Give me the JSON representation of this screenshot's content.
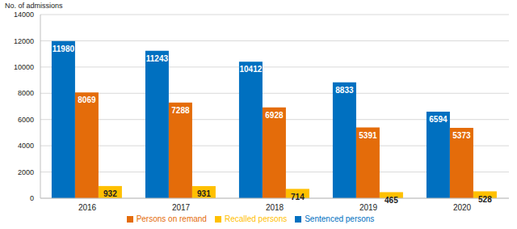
{
  "chart_data": {
    "type": "bar",
    "y_label": "No. of admissions",
    "categories": [
      "2016",
      "2017",
      "2018",
      "2019",
      "2020"
    ],
    "series": [
      {
        "name": "Sentenced persons",
        "color": "#0070c0",
        "values": [
          11980,
          11243,
          10412,
          8833,
          6594
        ]
      },
      {
        "name": "Persons on remand",
        "color": "#e46c0a",
        "values": [
          8069,
          7288,
          6928,
          5391,
          5373
        ]
      },
      {
        "name": "Recalled persons",
        "color": "#ffc000",
        "values": [
          932,
          931,
          714,
          465,
          528
        ]
      }
    ],
    "ylim": [
      0,
      14000
    ],
    "yticks": [
      0,
      2000,
      4000,
      6000,
      8000,
      10000,
      12000,
      14000
    ],
    "grid": true,
    "legend": "bottom",
    "data_labels": true
  }
}
